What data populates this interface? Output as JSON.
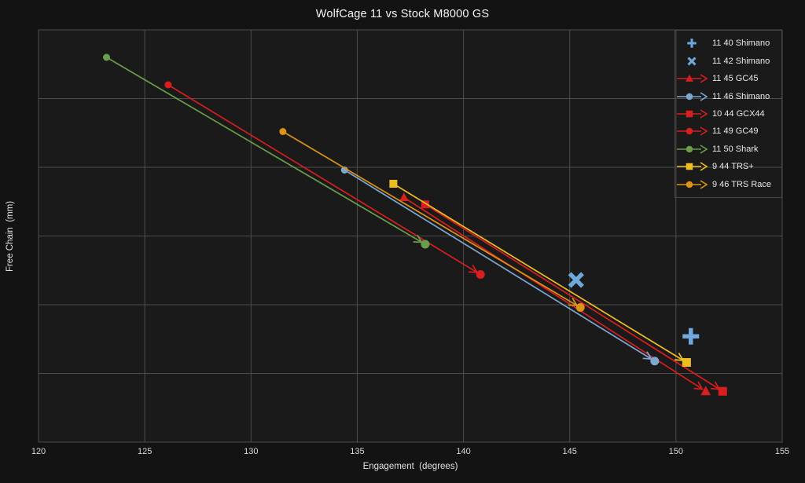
{
  "colors": {
    "background": "#131313",
    "plot_background": "#1a1a1a",
    "grid": "#4c4c4c",
    "legend_border": "#454545",
    "text": "#e3e3e3",
    "tick_text": "#d9d9d9",
    "title_text": "#f5f5f5",
    "blue": "#6fa8dc",
    "red": "#d81e1e",
    "green": "#6b9e4a",
    "yellow": "#eebd1f",
    "orange": "#dd9416"
  },
  "chart_data": {
    "type": "scatter",
    "title": "WolfCage 11 vs Stock M8000 GS",
    "xlabel": "Engagement  (degrees)",
    "ylabel": "Free Chain  (mm)",
    "xlim": [
      120,
      155
    ],
    "ylim": [
      40,
      70
    ],
    "xticks": [
      120,
      125,
      130,
      135,
      140,
      145,
      150,
      155
    ],
    "yticks": [
      40,
      45,
      50,
      55,
      60,
      65,
      70
    ],
    "grid": true,
    "legend_position": "top-right",
    "series": [
      {
        "name": "11 40 Shimano",
        "type": "point",
        "marker": "plus",
        "color": "#6fa8dc",
        "points": [
          [
            150.7,
            47.7
          ]
        ]
      },
      {
        "name": "11 42 Shimano",
        "type": "point",
        "marker": "x",
        "color": "#6fa8dc",
        "points": [
          [
            145.3,
            51.8
          ]
        ]
      },
      {
        "name": "11 45 GC45",
        "type": "arrow",
        "marker": "triangle",
        "color": "#d81e1e",
        "from": [
          137.2,
          57.8
        ],
        "to": [
          151.4,
          43.7
        ]
      },
      {
        "name": "11 46 Shimano",
        "type": "arrow",
        "marker": "circle",
        "color": "#7da7cf",
        "from": [
          134.4,
          59.8
        ],
        "to": [
          149.0,
          45.9
        ]
      },
      {
        "name": "10 44 GCX44",
        "type": "arrow",
        "marker": "square",
        "color": "#d81e1e",
        "from": [
          138.2,
          57.3
        ],
        "to": [
          152.2,
          43.7
        ]
      },
      {
        "name": "11 49 GC49",
        "type": "arrow",
        "marker": "circle",
        "color": "#d81e1e",
        "from": [
          126.1,
          66.0
        ],
        "to": [
          140.8,
          52.2
        ]
      },
      {
        "name": "11 50 Shark",
        "type": "arrow",
        "marker": "circle",
        "color": "#6b9e4a",
        "from": [
          123.2,
          68.0
        ],
        "to": [
          138.2,
          54.4
        ]
      },
      {
        "name": "9 44 TRS+",
        "type": "arrow",
        "marker": "square",
        "color": "#eebd1f",
        "from": [
          136.7,
          58.8
        ],
        "to": [
          150.5,
          45.8
        ]
      },
      {
        "name": "9 46 TRS Race",
        "type": "arrow",
        "marker": "circle",
        "color": "#dd9416",
        "from": [
          131.5,
          62.6
        ],
        "to": [
          145.5,
          49.8
        ]
      }
    ]
  }
}
